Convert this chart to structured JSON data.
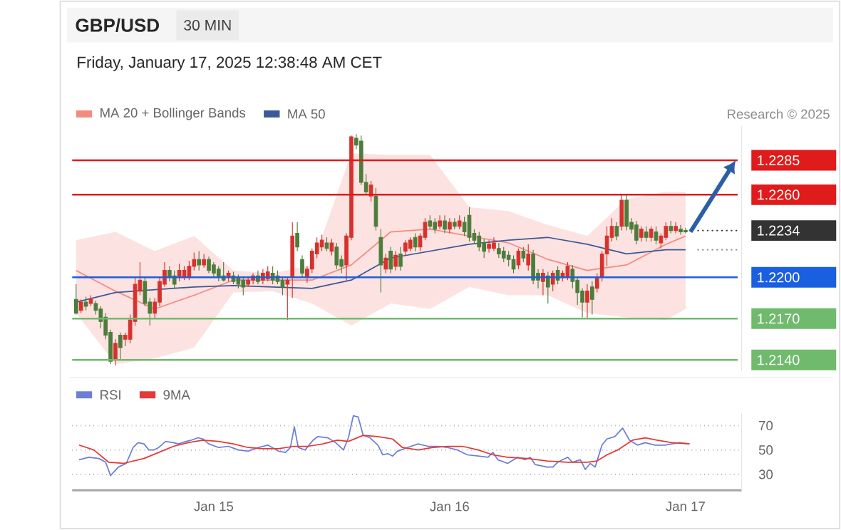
{
  "chart_data": [
    {
      "type": "candlestick",
      "title": "GBP/USD",
      "subtitle": "Friday, January 17, 2025 12:38:48 AM CET",
      "annotations": [
        "30 MIN",
        "Research © 2025"
      ],
      "xlim": [
        "2025-01-14T09:36",
        "2025-01-17T05:42"
      ],
      "ylim": [
        1.2132,
        1.231
      ],
      "yticks": [
        {
          "value": 1.2285,
          "label": "1.2285"
        },
        {
          "value": 1.226,
          "label": "1.2260"
        },
        {
          "value": 1.2234,
          "label": "1.2234"
        },
        {
          "value": 1.22,
          "label": "1.2200"
        },
        {
          "value": 1.217,
          "label": "1.2170"
        },
        {
          "value": 1.214,
          "label": "1.2140"
        }
      ],
      "tick_labels": "y",
      "legend": "top left",
      "ref_lines": [
        {
          "axis": "y",
          "value": 1.2285,
          "color": "#e01b1b"
        },
        {
          "axis": "y",
          "value": 1.226,
          "color": "#e01b1b"
        },
        {
          "axis": "y",
          "value": 1.22,
          "color": "#1a5fe0"
        },
        {
          "axis": "y",
          "value": 1.217,
          "color": "#6fba6d"
        },
        {
          "axis": "y",
          "value": 1.214,
          "color": "#6fba6d"
        }
      ],
      "series": [
        {
          "name": "MA 20 + Bollinger Bands",
          "type": "line",
          "color": "#f28b82",
          "x": [
            "2025-01-14T10:00",
            "2025-01-14T14:00",
            "2025-01-14T18:00",
            "2025-01-14T22:00",
            "2025-01-15T02:00",
            "2025-01-15T06:00",
            "2025-01-15T10:00",
            "2025-01-15T14:00",
            "2025-01-15T18:00",
            "2025-01-15T22:00",
            "2025-01-16T02:00",
            "2025-01-16T06:00",
            "2025-01-16T10:00",
            "2025-01-16T14:00",
            "2025-01-16T18:00",
            "2025-01-16T22:00",
            "2025-01-17T00:00"
          ],
          "values": [
            1.2205,
            1.219,
            1.2177,
            1.2187,
            1.2198,
            1.2198,
            1.2198,
            1.2209,
            1.2233,
            1.2235,
            1.223,
            1.2225,
            1.2213,
            1.2205,
            1.2209,
            1.2224,
            1.223
          ],
          "upper": [
            1.2227,
            1.2233,
            1.2219,
            1.223,
            1.2205,
            1.2203,
            1.2209,
            1.229,
            1.2289,
            1.2289,
            1.2251,
            1.2248,
            1.2238,
            1.223,
            1.2257,
            1.2262,
            1.2262
          ],
          "lower": [
            1.2174,
            1.2137,
            1.2141,
            1.2149,
            1.2189,
            1.219,
            1.2181,
            1.2165,
            1.2181,
            1.2177,
            1.2193,
            1.2187,
            1.2187,
            1.2174,
            1.2171,
            1.2169,
            1.2177
          ]
        },
        {
          "type": "line",
          "color": "#333333",
          "line_style": "dotted",
          "x": [
            "2025-01-17T01:12",
            "2025-01-17T05:18"
          ],
          "values": [
            1.2234,
            1.2234
          ]
        },
        {
          "type": "line",
          "color": "#888888",
          "line_style": "dotted",
          "x": [
            "2025-01-17T01:12",
            "2025-01-17T05:18"
          ],
          "values": [
            1.222,
            1.222
          ]
        },
        {
          "name": "MA 50",
          "type": "line",
          "color": "#3b5998",
          "x": [
            "2025-01-14T10:00",
            "2025-01-14T14:00",
            "2025-01-14T18:00",
            "2025-01-14T22:00",
            "2025-01-15T02:00",
            "2025-01-15T06:00",
            "2025-01-15T10:00",
            "2025-01-15T14:00",
            "2025-01-15T18:00",
            "2025-01-15T22:00",
            "2025-01-16T02:00",
            "2025-01-16T06:00",
            "2025-01-16T10:00",
            "2025-01-16T14:00",
            "2025-01-16T18:00",
            "2025-01-16T22:00",
            "2025-01-17T00:00"
          ],
          "values": [
            1.2182,
            1.2189,
            1.2191,
            1.2193,
            1.2194,
            1.2193,
            1.2192,
            1.2198,
            1.2214,
            1.2219,
            1.2224,
            1.2227,
            1.2229,
            1.2224,
            1.2217,
            1.222,
            1.222
          ]
        },
        {
          "type": "candlestick",
          "x": [
            "2025-01-14T10:00",
            "2025-01-14T10:30",
            "2025-01-14T11:00",
            "2025-01-14T11:30",
            "2025-01-14T12:00",
            "2025-01-14T12:30",
            "2025-01-14T13:00",
            "2025-01-14T13:30",
            "2025-01-14T14:00",
            "2025-01-14T14:30",
            "2025-01-14T15:00",
            "2025-01-14T15:30",
            "2025-01-14T16:00",
            "2025-01-14T16:30",
            "2025-01-14T17:00",
            "2025-01-14T17:30",
            "2025-01-14T18:00",
            "2025-01-14T18:30",
            "2025-01-14T19:00",
            "2025-01-14T19:30",
            "2025-01-14T20:00",
            "2025-01-14T20:30",
            "2025-01-14T21:00",
            "2025-01-14T21:30",
            "2025-01-14T22:00",
            "2025-01-14T22:30",
            "2025-01-14T23:00",
            "2025-01-14T23:30",
            "2025-01-15T00:00",
            "2025-01-15T00:30",
            "2025-01-15T01:00",
            "2025-01-15T01:30",
            "2025-01-15T02:00",
            "2025-01-15T02:30",
            "2025-01-15T03:00",
            "2025-01-15T03:30",
            "2025-01-15T04:00",
            "2025-01-15T04:30",
            "2025-01-15T05:00",
            "2025-01-15T05:30",
            "2025-01-15T06:00",
            "2025-01-15T06:30",
            "2025-01-15T07:00",
            "2025-01-15T07:30",
            "2025-01-15T08:00",
            "2025-01-15T08:30",
            "2025-01-15T09:00",
            "2025-01-15T09:30",
            "2025-01-15T10:00",
            "2025-01-15T10:30",
            "2025-01-15T11:00",
            "2025-01-15T11:30",
            "2025-01-15T12:00",
            "2025-01-15T12:30",
            "2025-01-15T13:00",
            "2025-01-15T13:30",
            "2025-01-15T14:00",
            "2025-01-15T14:30",
            "2025-01-15T15:00",
            "2025-01-15T15:30",
            "2025-01-15T16:00",
            "2025-01-15T16:30",
            "2025-01-15T17:00",
            "2025-01-15T17:30",
            "2025-01-15T18:00",
            "2025-01-15T18:30",
            "2025-01-15T19:00",
            "2025-01-15T19:30",
            "2025-01-15T20:00",
            "2025-01-15T20:30",
            "2025-01-15T21:00",
            "2025-01-15T21:30",
            "2025-01-15T22:00",
            "2025-01-15T22:30",
            "2025-01-15T23:00",
            "2025-01-15T23:30",
            "2025-01-16T00:00",
            "2025-01-16T00:30",
            "2025-01-16T01:00",
            "2025-01-16T01:30",
            "2025-01-16T02:00",
            "2025-01-16T02:30",
            "2025-01-16T03:00",
            "2025-01-16T03:30",
            "2025-01-16T04:00",
            "2025-01-16T04:30",
            "2025-01-16T05:00",
            "2025-01-16T05:30",
            "2025-01-16T06:00",
            "2025-01-16T06:30",
            "2025-01-16T07:00",
            "2025-01-16T07:30",
            "2025-01-16T08:00",
            "2025-01-16T08:30",
            "2025-01-16T09:00",
            "2025-01-16T09:30",
            "2025-01-16T10:00",
            "2025-01-16T10:30",
            "2025-01-16T11:00",
            "2025-01-16T11:30",
            "2025-01-16T12:00",
            "2025-01-16T12:30",
            "2025-01-16T13:00",
            "2025-01-16T13:30",
            "2025-01-16T14:00",
            "2025-01-16T14:30",
            "2025-01-16T15:00",
            "2025-01-16T15:30",
            "2025-01-16T16:00",
            "2025-01-16T16:30",
            "2025-01-16T17:00",
            "2025-01-16T17:30",
            "2025-01-16T18:00",
            "2025-01-16T18:30",
            "2025-01-16T19:00",
            "2025-01-16T19:30",
            "2025-01-16T20:00",
            "2025-01-16T20:30",
            "2025-01-16T21:00",
            "2025-01-16T21:30",
            "2025-01-16T22:00",
            "2025-01-16T22:30",
            "2025-01-16T23:00",
            "2025-01-16T23:30",
            "2025-01-17T00:00"
          ],
          "ohlc": [
            [
              1.2184,
              1.2195,
              1.2173,
              1.2174
            ],
            [
              1.2176,
              1.2184,
              1.2174,
              1.2182
            ],
            [
              1.2182,
              1.2186,
              1.2176,
              1.2179
            ],
            [
              1.2181,
              1.2187,
              1.2179,
              1.2184
            ],
            [
              1.2181,
              1.2183,
              1.2173,
              1.2176
            ],
            [
              1.2177,
              1.2179,
              1.2163,
              1.2168
            ],
            [
              1.2171,
              1.2174,
              1.2155,
              1.2158
            ],
            [
              1.216,
              1.2162,
              1.2137,
              1.2139
            ],
            [
              1.2141,
              1.2155,
              1.2136,
              1.2152
            ],
            [
              1.2158,
              1.216,
              1.214,
              1.2149
            ],
            [
              1.2155,
              1.216,
              1.215,
              1.2158
            ],
            [
              1.2155,
              1.2173,
              1.2152,
              1.2169
            ],
            [
              1.2168,
              1.22,
              1.2165,
              1.2195
            ],
            [
              1.219,
              1.2211,
              1.2187,
              1.2198
            ],
            [
              1.2197,
              1.22,
              1.2179,
              1.2181
            ],
            [
              1.2182,
              1.2185,
              1.2165,
              1.2174
            ],
            [
              1.2174,
              1.2185,
              1.217,
              1.2182
            ],
            [
              1.2182,
              1.22,
              1.2179,
              1.2197
            ],
            [
              1.2195,
              1.2211,
              1.2193,
              1.2205
            ],
            [
              1.2205,
              1.2208,
              1.2197,
              1.22
            ],
            [
              1.2201,
              1.2205,
              1.2192,
              1.2195
            ],
            [
              1.22,
              1.221,
              1.2197,
              1.2205
            ],
            [
              1.2201,
              1.2208,
              1.2198,
              1.2205
            ],
            [
              1.2201,
              1.2212,
              1.2198,
              1.2208
            ],
            [
              1.2208,
              1.2218,
              1.2205,
              1.2213
            ],
            [
              1.2213,
              1.2219,
              1.2205,
              1.2209
            ],
            [
              1.2209,
              1.2217,
              1.2207,
              1.2213
            ],
            [
              1.2213,
              1.2215,
              1.2203,
              1.2205
            ],
            [
              1.2209,
              1.2211,
              1.22,
              1.2203
            ],
            [
              1.2206,
              1.2208,
              1.2197,
              1.22
            ],
            [
              1.2201,
              1.2211,
              1.2197,
              1.2198
            ],
            [
              1.22,
              1.2205,
              1.2197,
              1.2203
            ],
            [
              1.2201,
              1.2204,
              1.2195,
              1.2197
            ],
            [
              1.22,
              1.2202,
              1.2192,
              1.2195
            ],
            [
              1.2198,
              1.22,
              1.2187,
              1.2193
            ],
            [
              1.2195,
              1.22,
              1.2193,
              1.2198
            ],
            [
              1.2198,
              1.2203,
              1.2195,
              1.2201
            ],
            [
              1.2201,
              1.2205,
              1.2195,
              1.2197
            ],
            [
              1.2198,
              1.2206,
              1.2195,
              1.2203
            ],
            [
              1.2199,
              1.2208,
              1.2197,
              1.2204
            ],
            [
              1.2203,
              1.2208,
              1.2195,
              1.2198
            ],
            [
              1.2201,
              1.2205,
              1.2195,
              1.2197
            ],
            [
              1.2198,
              1.22,
              1.2187,
              1.2193
            ],
            [
              1.2195,
              1.22,
              1.2169,
              1.2198
            ],
            [
              1.22,
              1.224,
              1.2185,
              1.223
            ],
            [
              1.2232,
              1.224,
              1.2219,
              1.2222
            ],
            [
              1.2213,
              1.2216,
              1.22,
              1.2203
            ],
            [
              1.2201,
              1.2208,
              1.2196,
              1.2206
            ],
            [
              1.2206,
              1.2221,
              1.2203,
              1.2219
            ],
            [
              1.2217,
              1.2229,
              1.2214,
              1.2225
            ],
            [
              1.2222,
              1.2231,
              1.2219,
              1.2227
            ],
            [
              1.2225,
              1.2229,
              1.2219,
              1.2221
            ],
            [
              1.2219,
              1.2228,
              1.2216,
              1.2225
            ],
            [
              1.2222,
              1.2225,
              1.2206,
              1.2209
            ],
            [
              1.2213,
              1.2216,
              1.2203,
              1.2208
            ],
            [
              1.2209,
              1.2232,
              1.2197,
              1.223
            ],
            [
              1.2229,
              1.2303,
              1.2227,
              1.2302
            ],
            [
              1.2301,
              1.2304,
              1.2293,
              1.2296
            ],
            [
              1.2299,
              1.2303,
              1.2267,
              1.2269
            ],
            [
              1.2269,
              1.2275,
              1.226,
              1.2262
            ],
            [
              1.2259,
              1.227,
              1.2255,
              1.2267
            ],
            [
              1.2259,
              1.2265,
              1.2234,
              1.2237
            ],
            [
              1.2229,
              1.2235,
              1.2189,
              1.2209
            ],
            [
              1.2206,
              1.2217,
              1.2203,
              1.2214
            ],
            [
              1.2219,
              1.2222,
              1.2203,
              1.2206
            ],
            [
              1.2208,
              1.2219,
              1.2205,
              1.2216
            ],
            [
              1.2217,
              1.2222,
              1.2205,
              1.2208
            ],
            [
              1.2219,
              1.2227,
              1.2216,
              1.2225
            ],
            [
              1.2221,
              1.2229,
              1.2219,
              1.2227
            ],
            [
              1.2229,
              1.2232,
              1.2219,
              1.2222
            ],
            [
              1.2222,
              1.2232,
              1.2219,
              1.223
            ],
            [
              1.2229,
              1.2243,
              1.2227,
              1.224
            ],
            [
              1.2241,
              1.2245,
              1.2235,
              1.2237
            ],
            [
              1.224,
              1.2243,
              1.2232,
              1.2235
            ],
            [
              1.2237,
              1.2245,
              1.2235,
              1.2241
            ],
            [
              1.2241,
              1.2245,
              1.2232,
              1.2235
            ],
            [
              1.2235,
              1.2243,
              1.2232,
              1.224
            ],
            [
              1.224,
              1.2243,
              1.2235,
              1.2237
            ],
            [
              1.2237,
              1.2245,
              1.2235,
              1.2241
            ],
            [
              1.224,
              1.2244,
              1.223,
              1.2233
            ],
            [
              1.2245,
              1.2251,
              1.2226,
              1.2229
            ],
            [
              1.2232,
              1.2235,
              1.2224,
              1.2227
            ],
            [
              1.223,
              1.2233,
              1.2219,
              1.2222
            ],
            [
              1.2225,
              1.2228,
              1.2214,
              1.2219
            ],
            [
              1.2221,
              1.2227,
              1.2218,
              1.2224
            ],
            [
              1.2221,
              1.2229,
              1.2219,
              1.2225
            ],
            [
              1.2221,
              1.2225,
              1.2214,
              1.2217
            ],
            [
              1.2219,
              1.2222,
              1.2211,
              1.2214
            ],
            [
              1.2216,
              1.2219,
              1.2208,
              1.2213
            ],
            [
              1.2213,
              1.2216,
              1.2203,
              1.2206
            ],
            [
              1.2209,
              1.2221,
              1.2206,
              1.2219
            ],
            [
              1.2219,
              1.2222,
              1.2211,
              1.2214
            ],
            [
              1.2209,
              1.2224,
              1.2205,
              1.2217
            ],
            [
              1.2217,
              1.222,
              1.2195,
              1.2198
            ],
            [
              1.2203,
              1.2206,
              1.2192,
              1.2198
            ],
            [
              1.2197,
              1.2206,
              1.2187,
              1.2203
            ],
            [
              1.2201,
              1.2204,
              1.2181,
              1.2193
            ],
            [
              1.2195,
              1.2205,
              1.219,
              1.2203
            ],
            [
              1.2205,
              1.2208,
              1.2195,
              1.2198
            ],
            [
              1.22,
              1.2205,
              1.2197,
              1.2203
            ],
            [
              1.2201,
              1.2211,
              1.2198,
              1.2208
            ],
            [
              1.2206,
              1.2209,
              1.2192,
              1.2197
            ],
            [
              1.2198,
              1.22,
              1.218,
              1.2189
            ],
            [
              1.219,
              1.2192,
              1.2171,
              1.2182
            ],
            [
              1.2182,
              1.2195,
              1.217,
              1.219
            ],
            [
              1.2193,
              1.2197,
              1.2173,
              1.2184
            ],
            [
              1.2192,
              1.2203,
              1.2189,
              1.22
            ],
            [
              1.22,
              1.2219,
              1.2197,
              1.2217
            ],
            [
              1.2217,
              1.2237,
              1.2208,
              1.223
            ],
            [
              1.2229,
              1.2243,
              1.2226,
              1.2237
            ],
            [
              1.2237,
              1.224,
              1.2227,
              1.223
            ],
            [
              1.2237,
              1.226,
              1.2234,
              1.2256
            ],
            [
              1.2256,
              1.226,
              1.2234,
              1.2237
            ],
            [
              1.224,
              1.2243,
              1.2232,
              1.2235
            ],
            [
              1.2238,
              1.2241,
              1.2224,
              1.2227
            ],
            [
              1.2229,
              1.2237,
              1.2226,
              1.2235
            ],
            [
              1.2233,
              1.2237,
              1.2226,
              1.2229
            ],
            [
              1.2229,
              1.2237,
              1.2226,
              1.2235
            ],
            [
              1.2233,
              1.2237,
              1.2224,
              1.2227
            ],
            [
              1.2225,
              1.2232,
              1.2221,
              1.223
            ],
            [
              1.2229,
              1.224,
              1.2227,
              1.2237
            ],
            [
              1.2237,
              1.2241,
              1.2232,
              1.2234
            ],
            [
              1.2234,
              1.224,
              1.2232,
              1.2237
            ],
            [
              1.2235,
              1.2238,
              1.2231,
              1.2233
            ],
            [
              1.2234,
              1.2236,
              1.2232,
              1.2233
            ]
          ],
          "colors": [
            "#4d7d3c",
            "#d7322d",
            "#4d7d3c",
            "#d7322d",
            "#4d7d3c",
            "#4d7d3c",
            "#4d7d3c",
            "#4d7d3c",
            "#d7322d",
            "#4d7d3c",
            "#d7322d",
            "#d7322d",
            "#d7322d",
            "#d7322d",
            "#4d7d3c",
            "#4d7d3c",
            "#d7322d",
            "#d7322d",
            "#d7322d",
            "#4d7d3c",
            "#4d7d3c",
            "#d7322d",
            "#d7322d",
            "#d7322d",
            "#d7322d",
            "#4d7d3c",
            "#d7322d",
            "#4d7d3c",
            "#4d7d3c",
            "#4d7d3c",
            "#4d7d3c",
            "#d7322d",
            "#4d7d3c",
            "#4d7d3c",
            "#4d7d3c",
            "#d7322d",
            "#d7322d",
            "#4d7d3c",
            "#d7322d",
            "#d7322d",
            "#4d7d3c",
            "#4d7d3c",
            "#4d7d3c",
            "#d7322d",
            "#d7322d",
            "#4d7d3c",
            "#4d7d3c",
            "#d7322d",
            "#d7322d",
            "#d7322d",
            "#d7322d",
            "#4d7d3c",
            "#d7322d",
            "#4d7d3c",
            "#4d7d3c",
            "#d7322d",
            "#d7322d",
            "#4d7d3c",
            "#4d7d3c",
            "#4d7d3c",
            "#d7322d",
            "#4d7d3c",
            "#4d7d3c",
            "#d7322d",
            "#4d7d3c",
            "#d7322d",
            "#4d7d3c",
            "#d7322d",
            "#d7322d",
            "#4d7d3c",
            "#d7322d",
            "#d7322d",
            "#4d7d3c",
            "#4d7d3c",
            "#d7322d",
            "#4d7d3c",
            "#d7322d",
            "#4d7d3c",
            "#d7322d",
            "#4d7d3c",
            "#4d7d3c",
            "#4d7d3c",
            "#4d7d3c",
            "#4d7d3c",
            "#d7322d",
            "#d7322d",
            "#4d7d3c",
            "#4d7d3c",
            "#4d7d3c",
            "#4d7d3c",
            "#d7322d",
            "#4d7d3c",
            "#d7322d",
            "#4d7d3c",
            "#4d7d3c",
            "#d7322d",
            "#4d7d3c",
            "#d7322d",
            "#4d7d3c",
            "#d7322d",
            "#d7322d",
            "#4d7d3c",
            "#4d7d3c",
            "#4d7d3c",
            "#d7322d",
            "#4d7d3c",
            "#d7322d",
            "#d7322d",
            "#d7322d",
            "#d7322d",
            "#4d7d3c",
            "#d7322d",
            "#4d7d3c",
            "#4d7d3c",
            "#4d7d3c",
            "#d7322d",
            "#4d7d3c",
            "#d7322d",
            "#4d7d3c",
            "#d7322d",
            "#d7322d",
            "#4d7d3c",
            "#d7322d",
            "#4d7d3c",
            "#4d7d3c"
          ]
        }
      ]
    },
    {
      "type": "line",
      "xlim": [
        "2025-01-14T09:36",
        "2025-01-17T05:42"
      ],
      "ylim": [
        17,
        80
      ],
      "xticks": [
        {
          "value": "2025-01-15",
          "label": "Jan 15"
        },
        {
          "value": "2025-01-16",
          "label": "Jan 16"
        },
        {
          "value": "2025-01-17",
          "label": "Jan 17"
        }
      ],
      "yticks": [
        30,
        50,
        70
      ],
      "grid": "y",
      "legend": "top left",
      "series": [
        {
          "name": "RSI",
          "color": "#6b7fd7",
          "x": [
            "2025-01-14T10:18",
            "2025-01-14T11:18",
            "2025-01-14T12:18",
            "2025-01-14T13:00",
            "2025-01-14T13:30",
            "2025-01-14T14:18",
            "2025-01-14T15:06",
            "2025-01-14T15:48",
            "2025-01-14T16:18",
            "2025-01-14T16:54",
            "2025-01-14T17:24",
            "2025-01-14T17:54",
            "2025-01-14T18:24",
            "2025-01-14T19:06",
            "2025-01-14T19:54",
            "2025-01-14T20:24",
            "2025-01-14T21:12",
            "2025-01-14T21:42",
            "2025-01-14T22:24",
            "2025-01-14T22:54",
            "2025-01-14T23:30",
            "2025-01-15T00:30",
            "2025-01-15T01:30",
            "2025-01-15T02:30",
            "2025-01-15T03:30",
            "2025-01-15T04:30",
            "2025-01-15T05:30",
            "2025-01-15T06:36",
            "2025-01-15T07:18",
            "2025-01-15T07:48",
            "2025-01-15T08:12",
            "2025-01-15T08:36",
            "2025-01-15T09:18",
            "2025-01-15T10:06",
            "2025-01-15T10:36",
            "2025-01-15T11:36",
            "2025-01-15T12:24",
            "2025-01-15T13:12",
            "2025-01-15T13:42",
            "2025-01-15T14:12",
            "2025-01-15T14:42",
            "2025-01-15T15:12",
            "2025-01-15T15:54",
            "2025-01-15T16:42",
            "2025-01-15T17:12",
            "2025-01-15T17:42",
            "2025-01-15T18:12",
            "2025-01-15T18:42",
            "2025-01-15T19:42",
            "2025-01-15T20:48",
            "2025-01-15T21:48",
            "2025-01-15T22:48",
            "2025-01-15T23:48",
            "2025-01-16T00:48",
            "2025-01-16T01:48",
            "2025-01-16T02:54",
            "2025-01-16T03:54",
            "2025-01-16T04:24",
            "2025-01-16T04:54",
            "2025-01-16T05:54",
            "2025-01-16T06:54",
            "2025-01-16T07:42",
            "2025-01-16T08:12",
            "2025-01-16T08:42",
            "2025-01-16T09:54",
            "2025-01-16T10:30",
            "2025-01-16T11:00",
            "2025-01-16T11:30",
            "2025-01-16T12:00",
            "2025-01-16T12:30",
            "2025-01-16T13:18",
            "2025-01-16T13:48",
            "2025-01-16T14:18",
            "2025-01-16T14:48",
            "2025-01-16T15:30",
            "2025-01-16T16:00",
            "2025-01-16T16:48",
            "2025-01-16T17:36",
            "2025-01-16T18:18",
            "2025-01-16T19:06",
            "2025-01-16T19:54",
            "2025-01-16T20:54",
            "2025-01-16T21:54",
            "2025-01-16T22:36",
            "2025-01-16T23:24",
            "2025-01-17T00:24"
          ],
          "values": [
            42,
            44,
            43,
            40,
            29,
            36,
            39,
            52,
            56,
            55,
            50,
            50,
            52,
            57,
            56,
            55,
            57,
            58,
            60,
            59,
            55,
            52,
            53,
            50,
            49,
            52,
            54,
            49,
            48,
            52,
            69,
            52,
            50,
            58,
            61,
            60,
            56,
            50,
            60,
            78,
            77,
            62,
            60,
            54,
            46,
            47,
            45,
            49,
            52,
            55,
            53,
            53,
            52,
            50,
            46,
            45,
            44,
            48,
            42,
            39,
            44,
            42,
            44,
            38,
            36,
            36,
            40,
            42,
            44,
            40,
            42,
            34,
            39,
            36,
            54,
            59,
            61,
            68,
            58,
            54,
            56,
            54,
            54,
            55,
            56,
            55
          ]
        },
        {
          "name": "9MA",
          "color": "#e53935",
          "x": [
            "2025-01-14T10:18",
            "2025-01-14T11:48",
            "2025-01-14T13:18",
            "2025-01-14T14:48",
            "2025-01-14T16:54",
            "2025-01-14T18:24",
            "2025-01-14T19:54",
            "2025-01-14T21:24",
            "2025-01-14T22:54",
            "2025-01-15T00:30",
            "2025-01-15T02:00",
            "2025-01-15T03:30",
            "2025-01-15T05:00",
            "2025-01-15T06:36",
            "2025-01-15T08:06",
            "2025-01-15T09:36",
            "2025-01-15T11:06",
            "2025-01-15T12:36",
            "2025-01-15T13:42",
            "2025-01-15T15:12",
            "2025-01-15T16:42",
            "2025-01-15T18:12",
            "2025-01-15T19:12",
            "2025-01-15T20:48",
            "2025-01-15T22:18",
            "2025-01-15T23:48",
            "2025-01-16T01:18",
            "2025-01-16T02:54",
            "2025-01-16T04:24",
            "2025-01-16T05:54",
            "2025-01-16T07:54",
            "2025-01-16T09:54",
            "2025-01-16T12:00",
            "2025-01-16T14:00",
            "2025-01-16T15:00",
            "2025-01-16T16:00",
            "2025-01-16T17:06",
            "2025-01-16T18:36",
            "2025-01-16T19:54",
            "2025-01-16T21:06",
            "2025-01-16T22:36",
            "2025-01-17T00:24"
          ],
          "values": [
            54,
            50,
            40,
            39,
            43,
            48,
            53,
            56,
            58,
            57,
            55,
            52,
            51,
            51,
            53,
            53,
            55,
            58,
            57,
            62,
            61,
            59,
            52,
            50,
            52,
            53,
            53,
            50,
            46,
            44,
            43,
            41,
            40,
            40,
            41,
            46,
            50,
            58,
            60,
            58,
            56,
            55
          ]
        }
      ]
    }
  ]
}
